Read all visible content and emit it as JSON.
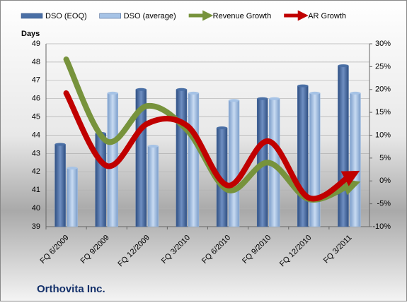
{
  "chart_data": {
    "type": "combo",
    "title": "Orthovita Inc.",
    "y_label": "Days",
    "categories": [
      "FQ 6/2009",
      "FQ 9/2009",
      "FQ 12/2009",
      "FQ 3/2010",
      "FQ 6/2010",
      "FQ 9/2010",
      "FQ 12/2010",
      "FQ 3/2011"
    ],
    "series": [
      {
        "name": "DSO (EOQ)",
        "type": "bar",
        "color": "#4a6fa5",
        "values": [
          43.5,
          44.1,
          46.5,
          46.5,
          44.4,
          46.0,
          46.7,
          47.8
        ]
      },
      {
        "name": "DSO (average)",
        "type": "bar",
        "color": "#a6c3e6",
        "values": [
          42.2,
          46.3,
          43.4,
          46.3,
          45.9,
          46.0,
          46.3,
          46.3
        ]
      },
      {
        "name": "Revenue Growth",
        "type": "line",
        "axis": "y2",
        "color": "#77933c",
        "values": [
          26.6,
          8.7,
          16.4,
          11,
          -2,
          4,
          -4,
          -1
        ]
      },
      {
        "name": "AR Growth",
        "type": "line",
        "axis": "y2",
        "color": "#c00000",
        "values": [
          19.2,
          3.3,
          12.5,
          12,
          -1,
          8.7,
          -3.7,
          1
        ]
      }
    ],
    "ylim": [
      39,
      49
    ],
    "yticks": [
      39,
      40,
      41,
      42,
      43,
      44,
      45,
      46,
      47,
      48,
      49
    ],
    "y2lim": [
      -10,
      30
    ],
    "y2ticks": [
      {
        "value": -10,
        "label": "-10%"
      },
      {
        "value": -5,
        "label": "-5%"
      },
      {
        "value": 0,
        "label": "0%"
      },
      {
        "value": 5,
        "label": "5%"
      },
      {
        "value": 10,
        "label": "10%"
      },
      {
        "value": 15,
        "label": "15%"
      },
      {
        "value": 20,
        "label": "20%"
      },
      {
        "value": 25,
        "label": "25%"
      },
      {
        "value": 30,
        "label": "30%"
      }
    ],
    "grid": true
  }
}
